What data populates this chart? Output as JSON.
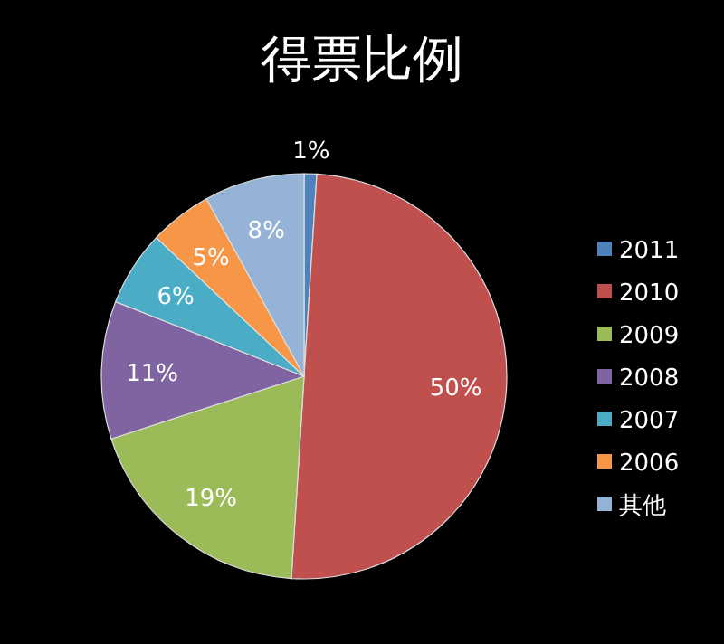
{
  "chart_data": {
    "type": "pie",
    "title": "得票比例",
    "categories": [
      "2011",
      "2010",
      "2009",
      "2008",
      "2007",
      "2006",
      "其他"
    ],
    "values": [
      1,
      50,
      19,
      11,
      6,
      5,
      8
    ],
    "colors": [
      "#4f81bd",
      "#c0504d",
      "#9bbb59",
      "#8064a2",
      "#4bacc6",
      "#f79646",
      "#95b3d7"
    ],
    "value_labels": [
      "1%",
      "50%",
      "19%",
      "11%",
      "6%",
      "5%",
      "8%"
    ],
    "legend": "right"
  }
}
